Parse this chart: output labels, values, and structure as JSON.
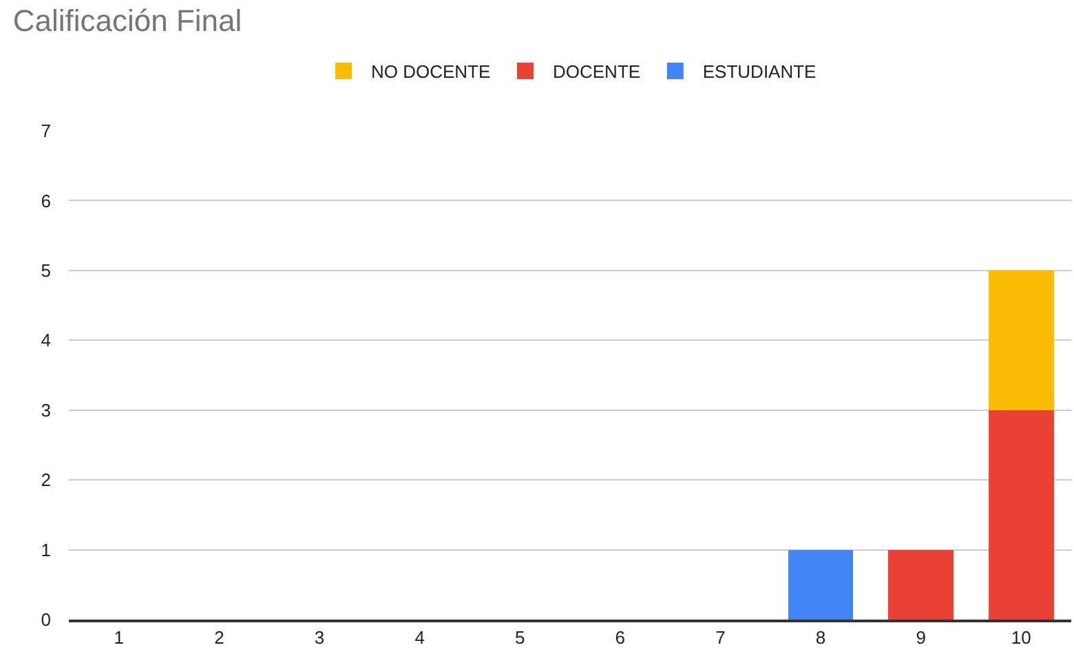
{
  "chart_data": {
    "type": "bar",
    "title": "Calificación Final",
    "stacked": true,
    "categories": [
      "1",
      "2",
      "3",
      "4",
      "5",
      "6",
      "7",
      "8",
      "9",
      "10"
    ],
    "series": [
      {
        "name": "ESTUDIANTE",
        "color": "#4285f4",
        "values": [
          0,
          0,
          0,
          0,
          0,
          0,
          0,
          1,
          0,
          0
        ]
      },
      {
        "name": "DOCENTE",
        "color": "#ea4335",
        "values": [
          0,
          0,
          0,
          0,
          0,
          0,
          0,
          0,
          1,
          3
        ]
      },
      {
        "name": "NO DOCENTE",
        "color": "#fbbc04",
        "values": [
          0,
          0,
          0,
          0,
          0,
          0,
          0,
          0,
          0,
          2
        ]
      }
    ],
    "ylim": [
      0,
      7
    ],
    "yticks": [
      0,
      1,
      2,
      3,
      4,
      5,
      6,
      7
    ],
    "grid": "y",
    "legend": "top"
  }
}
